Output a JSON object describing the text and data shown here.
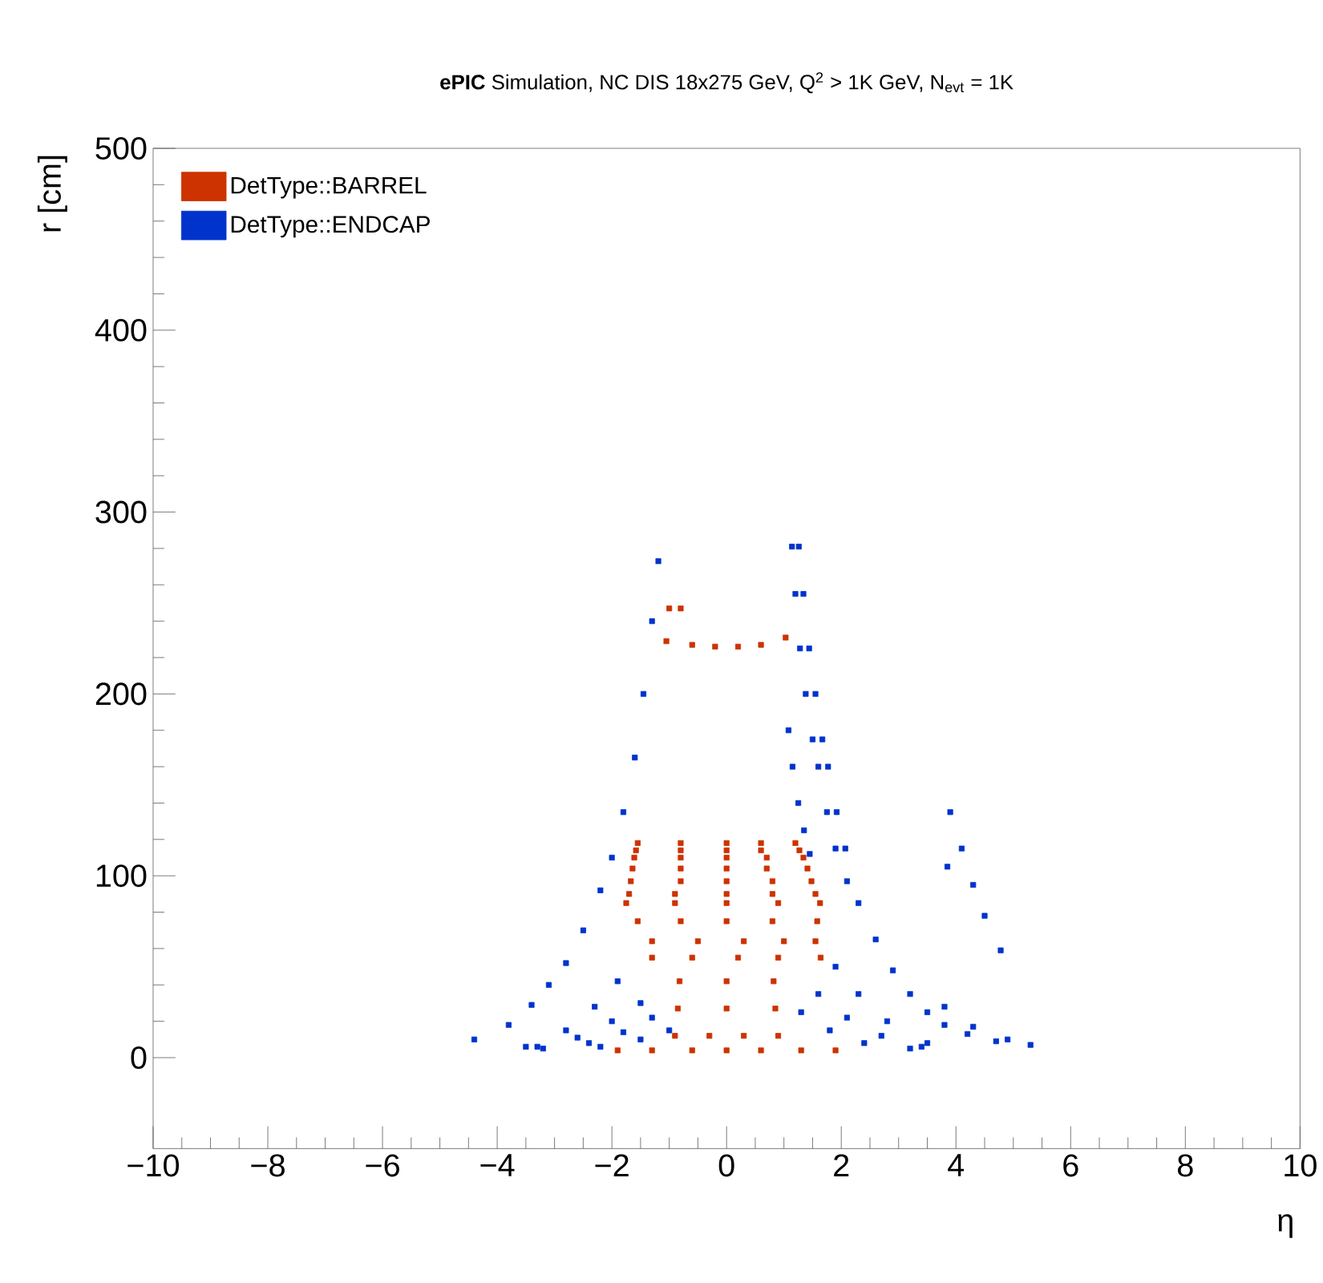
{
  "chart_data": {
    "type": "scatter",
    "title": "**ePIC** Simulation, NC DIS 18x275 GeV, Q$^{2}$ > 1K GeV, N$_{evt}$ = 1K",
    "xlabel": "η",
    "ylabel": "r [cm]",
    "xlim": [
      -10,
      10
    ],
    "ylim": [
      -50,
      500
    ],
    "xticks": [
      {
        "value": -10,
        "label": "−10"
      },
      {
        "value": -8,
        "label": "−8"
      },
      {
        "value": -6,
        "label": "−6"
      },
      {
        "value": -4,
        "label": "−4"
      },
      {
        "value": -2,
        "label": "−2"
      },
      0,
      2,
      4,
      6,
      8,
      10
    ],
    "yticks": [
      0,
      100,
      200,
      300,
      400,
      500
    ],
    "grid": false,
    "legend": "top left",
    "marker": "square",
    "series": [
      {
        "name": "DetType::BARREL",
        "color": "#cc3300",
        "x": [
          -1.9,
          -1.3,
          -0.6,
          0,
          0.6,
          1.3,
          1.9,
          -0.9,
          -0.3,
          0.3,
          0.9,
          -0.85,
          0,
          0.85,
          -0.82,
          0,
          0.82,
          -1.3,
          -0.6,
          0.2,
          0.9,
          1.64,
          -1.3,
          -0.5,
          0.3,
          1.0,
          1.55,
          -1.55,
          -0.8,
          0,
          0.8,
          1.58,
          -1.75,
          -0.9,
          0,
          0.9,
          1.63,
          -1.7,
          -0.9,
          0,
          0.8,
          1.55,
          -1.67,
          -0.8,
          0,
          0.8,
          1.48,
          -1.64,
          -0.8,
          0,
          0.7,
          1.41,
          -1.61,
          -0.8,
          0,
          0.7,
          1.34,
          -1.58,
          -0.8,
          0,
          0.6,
          1.27,
          -1.55,
          -0.8,
          0,
          0.6,
          1.2,
          -1.05,
          -0.6,
          -0.2,
          0.2,
          0.6,
          1.03,
          -1.0,
          -0.8
        ],
        "values": [
          4,
          4,
          4,
          4,
          4,
          4,
          4,
          12,
          12,
          12,
          12,
          27,
          27,
          27,
          42,
          42,
          42,
          55,
          55,
          55,
          55,
          55,
          64,
          64,
          64,
          64,
          64,
          75,
          75,
          75,
          75,
          75,
          85,
          85,
          85,
          85,
          85,
          90,
          90,
          90,
          90,
          90,
          97,
          97,
          97,
          97,
          97,
          104,
          104,
          104,
          104,
          104,
          110,
          110,
          110,
          110,
          110,
          114,
          114,
          114,
          114,
          114,
          118,
          118,
          118,
          118,
          118,
          229,
          227,
          226,
          226,
          227,
          231,
          247,
          247
        ]
      },
      {
        "name": "DetType::ENDCAP",
        "color": "#0033cc",
        "x": [
          -1.19,
          -1.3,
          -1.45,
          -1.6,
          -1.8,
          -2.0,
          -2.2,
          -2.5,
          -2.8,
          -3.1,
          -3.4,
          -3.8,
          -4.4,
          1.14,
          1.2,
          1.28,
          1.38,
          1.5,
          1.6,
          1.75,
          1.9,
          2.1,
          2.3,
          2.6,
          2.9,
          3.2,
          3.5,
          3.8,
          4.2,
          4.7,
          5.3,
          1.26,
          1.34,
          1.44,
          1.55,
          1.67,
          1.77,
          1.92,
          2.07,
          1.08,
          1.15,
          1.25,
          1.35,
          1.45,
          3.9,
          4.1,
          4.3,
          4.5,
          4.78,
          3.85,
          -1.9,
          -2.3,
          -2.8,
          -3.5,
          -1.5,
          -2.0,
          -2.6,
          -3.3,
          -1.3,
          -1.8,
          -2.4,
          -3.2,
          -1.0,
          -1.5,
          -2.2,
          1.9,
          2.3,
          2.8,
          3.5,
          1.6,
          2.1,
          2.7,
          3.4,
          1.3,
          1.8,
          2.4,
          3.2,
          3.8,
          4.3,
          4.9
        ],
        "values": [
          273,
          240,
          200,
          165,
          135,
          110,
          92,
          70,
          52,
          40,
          29,
          18,
          10,
          281,
          255,
          225,
          200,
          175,
          160,
          135,
          115,
          97,
          85,
          65,
          48,
          35,
          25,
          18,
          13,
          9,
          7,
          281,
          255,
          225,
          200,
          175,
          160,
          135,
          115,
          180,
          160,
          140,
          125,
          112,
          135,
          115,
          95,
          78,
          59,
          105,
          42,
          28,
          15,
          6,
          30,
          20,
          11,
          6,
          22,
          14,
          8,
          5,
          15,
          10,
          6,
          50,
          35,
          20,
          8,
          35,
          22,
          12,
          6,
          25,
          15,
          8,
          5,
          28,
          17,
          10
        ]
      }
    ]
  }
}
